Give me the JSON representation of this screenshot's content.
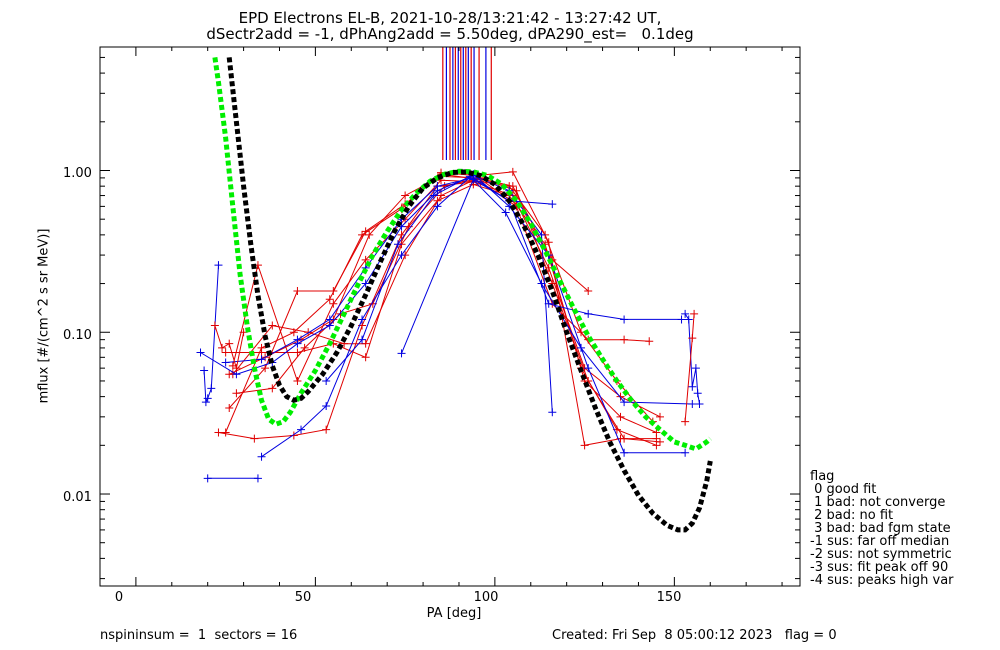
{
  "title_line1": "EPD Electrons EL-B, 2021-10-28/13:21:42 - 13:27:42 UT,",
  "title_line2": "dSectr2add = -1, dPhAng2add = 5.50deg, dPA290_est=   0.1deg",
  "footer": {
    "left": "nspininsum =  1  sectors = 16",
    "right": "Created: Fri Sep  8 05:00:12 2023   flag = 0"
  },
  "legend": {
    "title": "flag",
    "items": [
      " 0 good fit",
      " 1 bad: not converge",
      " 2 bad: no fit",
      " 3 bad: bad fgm state",
      "-1 sus: far off median",
      "-2 sus: not symmetric",
      "-3 sus: fit peak off 90",
      "-4 sus: peaks high var"
    ]
  },
  "colors": {
    "red": "#e00000",
    "blue": "#0000e0",
    "green": "#00ee00",
    "black": "#000000"
  },
  "chart_data": {
    "type": "line",
    "xlabel": "PA [deg]",
    "ylabel": "mflux [#/(cm^2 s sr MeV)]",
    "xlim": [
      -10,
      185
    ],
    "ylim": [
      0.0027,
      5.8
    ],
    "ylog": true,
    "xticks": [
      0,
      50,
      100,
      150
    ],
    "xtick_labels": [
      "0",
      "50",
      "100",
      "150"
    ],
    "yticks": [
      0.01,
      0.1,
      1.0
    ],
    "ytick_labels": [
      "0.01",
      "0.10",
      "1.00"
    ],
    "vertical_markers": [
      {
        "x": 85.5,
        "color": "red"
      },
      {
        "x": 86.5,
        "color": "blue"
      },
      {
        "x": 87.5,
        "color": "red"
      },
      {
        "x": 88.3,
        "color": "blue"
      },
      {
        "x": 89.0,
        "color": "red"
      },
      {
        "x": 89.8,
        "color": "blue"
      },
      {
        "x": 90.5,
        "color": "red"
      },
      {
        "x": 91.2,
        "color": "blue"
      },
      {
        "x": 91.9,
        "color": "red"
      },
      {
        "x": 92.6,
        "color": "blue"
      },
      {
        "x": 93.4,
        "color": "red"
      },
      {
        "x": 94.2,
        "color": "blue"
      },
      {
        "x": 95.6,
        "color": "red"
      },
      {
        "x": 97.5,
        "color": "blue"
      },
      {
        "x": 99.0,
        "color": "red"
      }
    ],
    "series": [
      {
        "color": "red",
        "points": [
          [
            26,
            0.034
          ],
          [
            36,
            0.06
          ],
          [
            45,
            0.18
          ],
          [
            55,
            0.18
          ],
          [
            64,
            0.42
          ],
          [
            75,
            0.62
          ],
          [
            85,
            0.95
          ],
          [
            96,
            0.88
          ],
          [
            106,
            0.62
          ],
          [
            116,
            0.28
          ],
          [
            126,
            0.18
          ]
        ]
      },
      {
        "color": "red",
        "points": [
          [
            25,
            0.024
          ],
          [
            35,
            0.08
          ],
          [
            44,
            0.1
          ],
          [
            54,
            0.16
          ],
          [
            63,
            0.4
          ],
          [
            74,
            0.58
          ],
          [
            85,
            0.97
          ],
          [
            95,
            0.93
          ],
          [
            105,
            0.98
          ],
          [
            115,
            0.36
          ],
          [
            125,
            0.02
          ],
          [
            135,
            0.022
          ],
          [
            145,
            0.022
          ]
        ]
      },
      {
        "color": "red",
        "points": [
          [
            26,
            0.055
          ],
          [
            36,
            0.07
          ],
          [
            46,
            0.09
          ],
          [
            55,
            0.12
          ],
          [
            65,
            0.4
          ],
          [
            75,
            0.7
          ],
          [
            85,
            0.92
          ],
          [
            95,
            0.9
          ],
          [
            105,
            0.8
          ],
          [
            115,
            0.3
          ],
          [
            125,
            0.05
          ],
          [
            135,
            0.03
          ],
          [
            145,
            0.024
          ]
        ]
      },
      {
        "color": "red",
        "points": [
          [
            27,
            0.062
          ],
          [
            34,
            0.26
          ],
          [
            45,
            0.05
          ],
          [
            55,
            0.15
          ],
          [
            64,
            0.28
          ],
          [
            75,
            0.5
          ],
          [
            85,
            0.87
          ],
          [
            96,
            0.85
          ],
          [
            106,
            0.6
          ],
          [
            116,
            0.15
          ],
          [
            126,
            0.09
          ],
          [
            136,
            0.09
          ],
          [
            143,
            0.088
          ]
        ]
      },
      {
        "color": "red",
        "points": [
          [
            23,
            0.024
          ],
          [
            33,
            0.022
          ],
          [
            44,
            0.023
          ],
          [
            53,
            0.025
          ],
          [
            63,
            0.11
          ],
          [
            74,
            0.4
          ],
          [
            84,
            0.8
          ],
          [
            94,
            0.85
          ],
          [
            105,
            0.7
          ],
          [
            115,
            0.25
          ],
          [
            125,
            0.06
          ],
          [
            135,
            0.04
          ],
          [
            146,
            0.03
          ]
        ]
      },
      {
        "color": "red",
        "points": [
          [
            27,
            0.055
          ],
          [
            38,
            0.11
          ],
          [
            48,
            0.1
          ],
          [
            58,
            0.085
          ],
          [
            64,
            0.085
          ],
          [
            75,
            0.3
          ],
          [
            85,
            0.7
          ],
          [
            94,
            0.87
          ],
          [
            104,
            0.8
          ],
          [
            114,
            0.4
          ],
          [
            124,
            0.1
          ],
          [
            134,
            0.05
          ],
          [
            144,
            0.028
          ]
        ]
      },
      {
        "color": "red",
        "points": [
          [
            25,
            0.075
          ],
          [
            35,
            0.075
          ],
          [
            45,
            0.075
          ],
          [
            55,
            0.085
          ],
          [
            64,
            0.07
          ],
          [
            74,
            0.35
          ],
          [
            84,
            0.65
          ],
          [
            94,
            0.82
          ],
          [
            104,
            0.7
          ],
          [
            114,
            0.35
          ],
          [
            124,
            0.06
          ],
          [
            134,
            0.025
          ],
          [
            145,
            0.02
          ]
        ]
      },
      {
        "color": "red",
        "points": [
          [
            28,
            0.042
          ],
          [
            38,
            0.045
          ],
          [
            47,
            0.08
          ],
          [
            57,
            0.13
          ],
          [
            66,
            0.15
          ],
          [
            76,
            0.45
          ],
          [
            86,
            0.8
          ],
          [
            96,
            0.9
          ],
          [
            106,
            0.75
          ],
          [
            116,
            0.2
          ],
          [
            126,
            0.05
          ],
          [
            136,
            0.022
          ],
          [
            146,
            0.021
          ]
        ]
      },
      {
        "color": "blue",
        "points": [
          [
            18,
            0.075
          ],
          [
            28,
            0.055
          ],
          [
            38,
            0.065
          ],
          [
            45,
            0.085
          ],
          [
            54,
            0.11
          ],
          [
            64,
            0.2
          ],
          [
            74,
            0.45
          ],
          [
            84,
            0.75
          ],
          [
            94,
            0.93
          ],
          [
            104,
            0.75
          ],
          [
            113,
            0.4
          ],
          [
            116,
            0.032
          ]
        ]
      },
      {
        "color": "blue",
        "points": [
          [
            20,
            0.0125
          ],
          [
            34,
            0.0125
          ]
        ]
      },
      {
        "color": "blue",
        "points": [
          [
            35,
            0.017
          ],
          [
            46,
            0.025
          ],
          [
            53,
            0.035
          ],
          [
            63,
            0.12
          ],
          [
            74,
            0.3
          ],
          [
            84,
            0.6
          ],
          [
            94,
            0.95
          ],
          [
            104,
            0.6
          ],
          [
            115,
            0.3
          ],
          [
            126,
            0.06
          ],
          [
            136,
            0.018
          ],
          [
            153,
            0.018
          ]
        ]
      },
      {
        "color": "blue",
        "points": [
          [
            74,
            0.074
          ],
          [
            94,
            0.88
          ],
          [
            104,
            0.65
          ],
          [
            116,
            0.62
          ]
        ]
      },
      {
        "color": "blue",
        "points": [
          [
            25,
            0.065
          ],
          [
            35,
            0.068
          ],
          [
            45,
            0.09
          ],
          [
            54,
            0.12
          ],
          [
            64,
            0.25
          ],
          [
            74,
            0.5
          ],
          [
            84,
            0.8
          ],
          [
            94,
            0.9
          ],
          [
            104,
            0.65
          ],
          [
            115,
            0.15
          ],
          [
            126,
            0.13
          ],
          [
            136,
            0.12
          ],
          [
            152,
            0.12
          ]
        ]
      },
      {
        "color": "blue",
        "points": [
          [
            53,
            0.05
          ],
          [
            63,
            0.09
          ],
          [
            73,
            0.35
          ],
          [
            83,
            0.7
          ],
          [
            93,
            0.92
          ],
          [
            103,
            0.55
          ],
          [
            113,
            0.2
          ],
          [
            124,
            0.08
          ],
          [
            136,
            0.037
          ],
          [
            155,
            0.036
          ]
        ]
      },
      {
        "color": "blue",
        "points": [
          [
            19,
            0.058
          ],
          [
            19.5,
            0.037
          ],
          [
            20,
            0.039
          ],
          [
            21,
            0.045
          ],
          [
            23,
            0.26
          ]
        ]
      },
      {
        "color": "blue",
        "points": [
          [
            153,
            0.13
          ],
          [
            154,
            0.12
          ],
          [
            155,
            0.046
          ],
          [
            156,
            0.06
          ],
          [
            156.5,
            0.042
          ],
          [
            157,
            0.036
          ]
        ]
      },
      {
        "color": "red",
        "points": [
          [
            22,
            0.11
          ],
          [
            24,
            0.08
          ],
          [
            26,
            0.085
          ],
          [
            28,
            0.06
          ],
          [
            30,
            0.1
          ]
        ]
      },
      {
        "color": "red",
        "points": [
          [
            153,
            0.028
          ],
          [
            155,
            0.092
          ],
          [
            155.5,
            0.13
          ]
        ]
      }
    ],
    "fits": [
      {
        "color": "green",
        "points": [
          [
            22,
            5.0
          ],
          [
            23,
            3.5
          ],
          [
            25,
            1.6
          ],
          [
            27,
            0.6
          ],
          [
            29,
            0.23
          ],
          [
            31,
            0.11
          ],
          [
            33,
            0.06
          ],
          [
            35,
            0.038
          ],
          [
            37,
            0.029
          ],
          [
            39,
            0.027
          ],
          [
            41,
            0.028
          ],
          [
            43,
            0.032
          ],
          [
            46,
            0.042
          ],
          [
            50,
            0.058
          ],
          [
            54,
            0.085
          ],
          [
            58,
            0.13
          ],
          [
            62,
            0.2
          ],
          [
            66,
            0.3
          ],
          [
            70,
            0.42
          ],
          [
            74,
            0.57
          ],
          [
            78,
            0.72
          ],
          [
            82,
            0.86
          ],
          [
            86,
            0.95
          ],
          [
            90,
            0.99
          ],
          [
            94,
            0.98
          ],
          [
            98,
            0.93
          ],
          [
            102,
            0.82
          ],
          [
            106,
            0.65
          ],
          [
            110,
            0.47
          ],
          [
            114,
            0.32
          ],
          [
            118,
            0.21
          ],
          [
            122,
            0.14
          ],
          [
            126,
            0.095
          ],
          [
            130,
            0.068
          ],
          [
            134,
            0.05
          ],
          [
            138,
            0.038
          ],
          [
            142,
            0.03
          ],
          [
            146,
            0.025
          ],
          [
            150,
            0.021
          ],
          [
            153,
            0.02
          ],
          [
            156,
            0.019
          ],
          [
            159,
            0.021
          ],
          [
            160,
            0.022
          ]
        ]
      },
      {
        "color": "black",
        "points": [
          [
            26,
            5.0
          ],
          [
            28,
            2.0
          ],
          [
            30,
            0.8
          ],
          [
            32,
            0.35
          ],
          [
            34,
            0.17
          ],
          [
            36,
            0.095
          ],
          [
            38,
            0.062
          ],
          [
            40,
            0.047
          ],
          [
            42,
            0.04
          ],
          [
            44,
            0.038
          ],
          [
            46,
            0.039
          ],
          [
            48,
            0.043
          ],
          [
            52,
            0.055
          ],
          [
            56,
            0.075
          ],
          [
            60,
            0.11
          ],
          [
            64,
            0.17
          ],
          [
            68,
            0.27
          ],
          [
            72,
            0.42
          ],
          [
            76,
            0.6
          ],
          [
            80,
            0.78
          ],
          [
            84,
            0.9
          ],
          [
            88,
            0.97
          ],
          [
            92,
            0.98
          ],
          [
            96,
            0.93
          ],
          [
            100,
            0.82
          ],
          [
            104,
            0.65
          ],
          [
            108,
            0.46
          ],
          [
            112,
            0.3
          ],
          [
            116,
            0.18
          ],
          [
            120,
            0.1
          ],
          [
            124,
            0.058
          ],
          [
            128,
            0.034
          ],
          [
            132,
            0.021
          ],
          [
            136,
            0.014
          ],
          [
            140,
            0.0098
          ],
          [
            144,
            0.0076
          ],
          [
            148,
            0.0064
          ],
          [
            151,
            0.006
          ],
          [
            153,
            0.006
          ],
          [
            155,
            0.0066
          ],
          [
            157,
            0.0082
          ],
          [
            159,
            0.012
          ],
          [
            160,
            0.016
          ]
        ]
      }
    ]
  }
}
